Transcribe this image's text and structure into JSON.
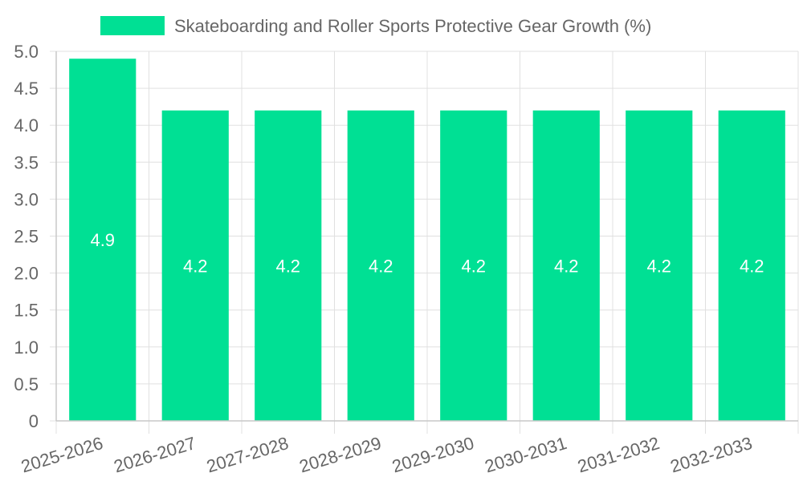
{
  "chart_data": {
    "type": "bar",
    "categories": [
      "2025-2026",
      "2026-2027",
      "2027-2028",
      "2028-2029",
      "2029-2030",
      "2030-2031",
      "2031-2032",
      "2032-2033"
    ],
    "series": [
      {
        "name": "Skateboarding and Roller Sports Protective Gear Growth (%)",
        "values": [
          4.9,
          4.2,
          4.2,
          4.2,
          4.2,
          4.2,
          4.2,
          4.2
        ],
        "color": "#00e094"
      }
    ],
    "ylim": [
      0,
      5.0
    ],
    "yticks": [
      "0",
      "0.5",
      "1.0",
      "1.5",
      "2.0",
      "2.5",
      "3.0",
      "3.5",
      "4.0",
      "4.5",
      "5.0"
    ],
    "grid": true,
    "legend_position": "top-center",
    "data_labels": true
  }
}
